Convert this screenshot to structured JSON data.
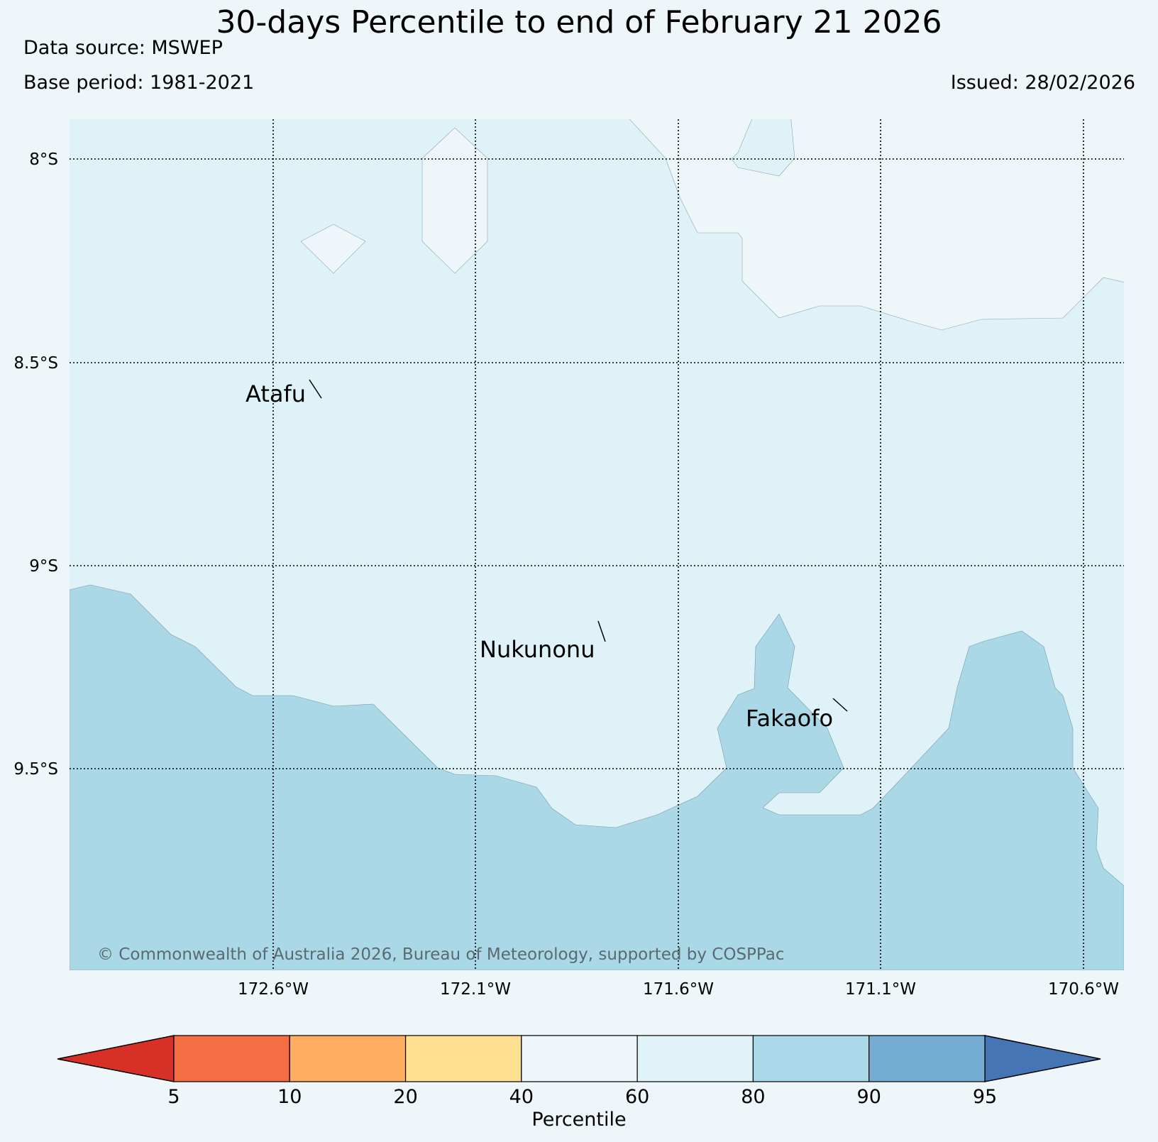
{
  "header": {
    "title": "30-days Percentile to end of February 21 2026",
    "data_source": "Data source: MSWEP",
    "base_period": "Base period: 1981-2021",
    "issued": "Issued: 28/02/2026"
  },
  "map": {
    "latitude_labels": [
      "8°S",
      "8.5°S",
      "9°S",
      "9.5°S"
    ],
    "longitude_labels": [
      "172.6°W",
      "172.1°W",
      "171.6°W",
      "171.1°W",
      "170.6°W"
    ],
    "places": [
      "Atafu",
      "Nukunonu",
      "Fakaofo"
    ],
    "copyright": "© Commonwealth of Australia 2026, Bureau of Meteorology, supported by COSPPac",
    "colors": {
      "band_40_60": "#eef6f9",
      "band_60_80": "#dff2f7",
      "band_80_90": "#aad8e6"
    }
  },
  "colorbar": {
    "label": "Percentile",
    "ticks": [
      "5",
      "10",
      "20",
      "40",
      "60",
      "80",
      "90",
      "95"
    ],
    "colors": [
      "#d73027",
      "#f46d43",
      "#fdae61",
      "#fee090",
      "#eef6f9",
      "#e0f3f8",
      "#abd9e9",
      "#74add1",
      "#4575b4"
    ]
  }
}
